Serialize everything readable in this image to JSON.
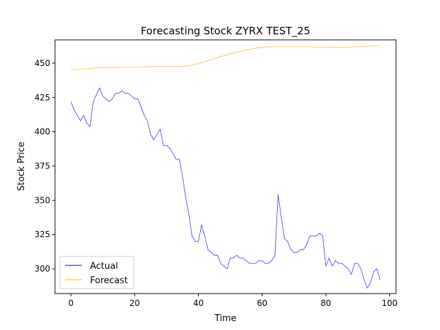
{
  "chart_data": {
    "type": "line",
    "title": "Forecasting Stock ZYRX TEST_25",
    "xlabel": "Time",
    "ylabel": "Stock Price",
    "xlim": [
      -5,
      102
    ],
    "ylim": [
      282,
      467
    ],
    "xticks": [
      0,
      20,
      40,
      60,
      80,
      100
    ],
    "yticks": [
      300,
      325,
      350,
      375,
      400,
      425,
      450
    ],
    "grid": false,
    "legend_position": "lower-left",
    "series": [
      {
        "name": "Actual",
        "color": "#0000ff",
        "x": [
          0,
          1,
          2,
          3,
          4,
          5,
          6,
          7,
          8,
          9,
          10,
          11,
          12,
          13,
          14,
          15,
          16,
          17,
          18,
          19,
          20,
          21,
          22,
          23,
          24,
          25,
          26,
          27,
          28,
          29,
          30,
          31,
          32,
          33,
          34,
          35,
          36,
          37,
          38,
          39,
          40,
          41,
          42,
          43,
          44,
          45,
          46,
          47,
          48,
          49,
          50,
          51,
          52,
          53,
          54,
          55,
          56,
          57,
          58,
          59,
          60,
          61,
          62,
          63,
          64,
          65,
          66,
          67,
          68,
          69,
          70,
          71,
          72,
          73,
          74,
          75,
          76,
          77,
          78,
          79,
          80,
          81,
          82,
          83,
          84,
          85,
          86,
          87,
          88,
          89,
          90,
          91,
          92,
          93,
          94,
          95,
          96,
          97
        ],
        "y": [
          422,
          416,
          412,
          408,
          412,
          406,
          404,
          422,
          427,
          432,
          426,
          424,
          422,
          424,
          428,
          428,
          430,
          428,
          428,
          426,
          424,
          424,
          418,
          412,
          408,
          398,
          394,
          398,
          402,
          390,
          390,
          388,
          384,
          380,
          380,
          368,
          352,
          340,
          324,
          320,
          320,
          332,
          324,
          314,
          312,
          310,
          310,
          304,
          302,
          300,
          308,
          308,
          310,
          308,
          308,
          306,
          304,
          304,
          304,
          306,
          306,
          304,
          304,
          306,
          310,
          354,
          338,
          322,
          320,
          314,
          312,
          312,
          314,
          314,
          318,
          324,
          324,
          324,
          326,
          324,
          302,
          308,
          302,
          306,
          304,
          304,
          302,
          300,
          296,
          304,
          304,
          300,
          292,
          286,
          290,
          298,
          300,
          292
        ]
      },
      {
        "name": "Forecast",
        "color": "#ffb000",
        "x": [
          0,
          5,
          7,
          8,
          10,
          15,
          20,
          25,
          30,
          35,
          38,
          42,
          46,
          50,
          54,
          58,
          62,
          66,
          70,
          75,
          80,
          85,
          90,
          94,
          97
        ],
        "y": [
          445,
          446,
          446,
          447,
          446.5,
          447,
          447,
          447.5,
          447.5,
          447.5,
          448.5,
          451,
          454,
          457,
          459,
          461,
          462,
          462,
          462,
          462,
          461.5,
          461.5,
          462,
          462.5,
          462.5
        ]
      }
    ]
  }
}
